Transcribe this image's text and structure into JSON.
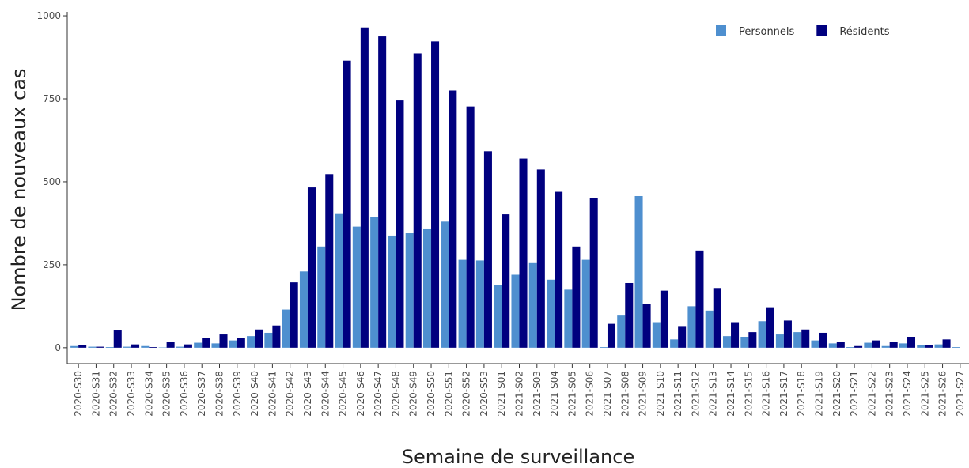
{
  "chart_data": {
    "type": "bar",
    "x_label": "Semaine de surveillance",
    "y_label": "Nombre de nouveaux cas",
    "categories": [
      "2020-S30",
      "2020-S31",
      "2020-S32",
      "2020-S33",
      "2020-S34",
      "2020-S35",
      "2020-S36",
      "2020-S37",
      "2020-S38",
      "2020-S39",
      "2020-S40",
      "2020-S41",
      "2020-S42",
      "2020-S43",
      "2020-S44",
      "2020-S45",
      "2020-S46",
      "2020-S47",
      "2020-S48",
      "2020-S49",
      "2020-S50",
      "2020-S51",
      "2020-S52",
      "2020-S53",
      "2021-S01",
      "2021-S02",
      "2021-S03",
      "2021-S04",
      "2021-S05",
      "2021-S06",
      "2021-S07",
      "2021-S08",
      "2021-S09",
      "2021-S10",
      "2021-S11",
      "2021-S12",
      "2021-S13",
      "2021-S14",
      "2021-S15",
      "2021-S16",
      "2021-S17",
      "2021-S18",
      "2021-S19",
      "2021-S20",
      "2021-S21",
      "2021-S22",
      "2021-S23",
      "2021-S24",
      "2021-S25",
      "2021-S26",
      "2021-S27"
    ],
    "series": [
      {
        "name": "Personnels",
        "color": "#4e8fcf",
        "values": [
          5,
          3,
          2,
          3,
          5,
          1,
          3,
          15,
          13,
          22,
          35,
          45,
          115,
          230,
          305,
          403,
          365,
          393,
          338,
          345,
          357,
          380,
          265,
          263,
          190,
          220,
          255,
          205,
          175,
          265,
          2,
          97,
          457,
          77,
          25,
          125,
          112,
          35,
          33,
          80,
          40,
          47,
          22,
          13,
          2,
          15,
          5,
          13,
          7,
          10,
          2
        ]
      },
      {
        "name": "Résidents",
        "color": "#00007f",
        "values": [
          8,
          3,
          52,
          10,
          2,
          18,
          10,
          30,
          40,
          30,
          55,
          67,
          197,
          483,
          523,
          865,
          965,
          938,
          745,
          887,
          923,
          775,
          727,
          592,
          402,
          570,
          537,
          470,
          305,
          450,
          72,
          195,
          133,
          172,
          63,
          293,
          180,
          77,
          47,
          122,
          82,
          55,
          45,
          17,
          5,
          22,
          18,
          33,
          7,
          25,
          0
        ]
      }
    ],
    "ylim": [
      -48,
      1012
    ],
    "yticks": [
      0,
      250,
      500,
      750,
      1000
    ],
    "legend": "top-right"
  }
}
